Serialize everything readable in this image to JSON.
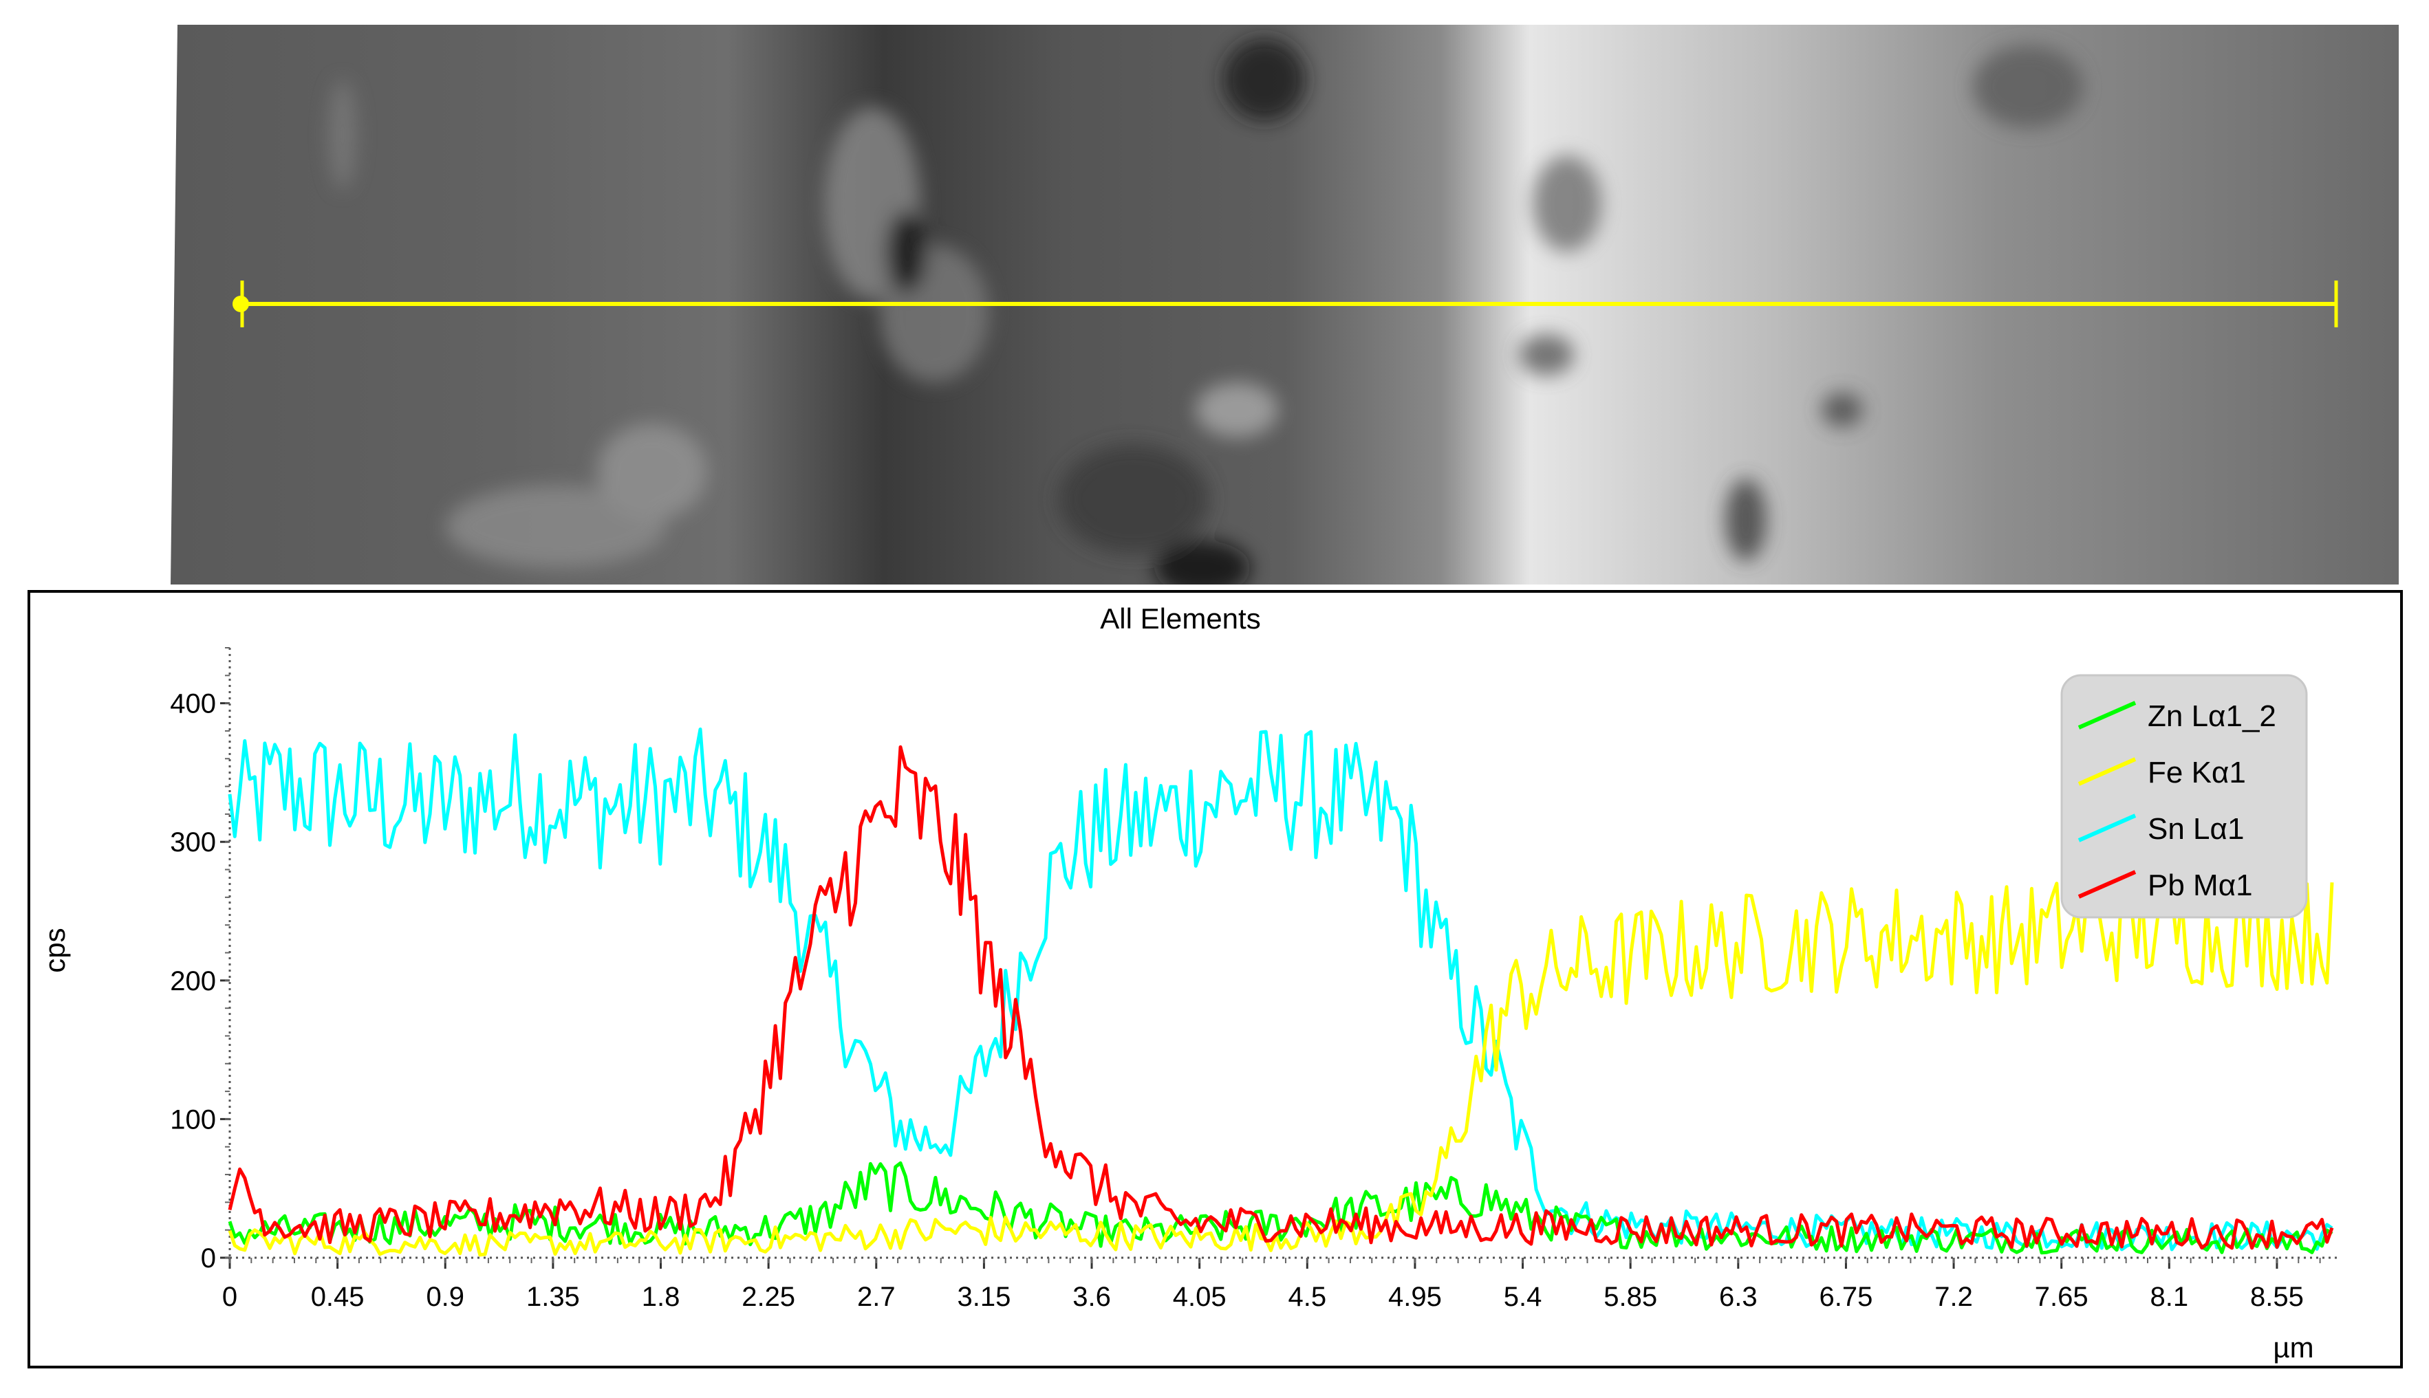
{
  "image_panel": {
    "scan_line": {
      "color": "#ffff00"
    }
  },
  "chart_data": {
    "type": "line",
    "title": "All Elements",
    "xlabel": "µm",
    "ylabel": "cps",
    "xlim": [
      0,
      8.78
    ],
    "ylim": [
      0,
      440
    ],
    "x_ticks": [
      "0",
      "0.45",
      "0.9",
      "1.35",
      "1.8",
      "2.25",
      "2.7",
      "3.15",
      "3.6",
      "4.05",
      "4.5",
      "4.95",
      "5.4",
      "5.85",
      "6.3",
      "6.75",
      "7.2",
      "7.65",
      "8.1",
      "8.55"
    ],
    "y_ticks": [
      "0",
      "100",
      "200",
      "300",
      "400"
    ],
    "legend_position": "top-right",
    "grid": false,
    "series": [
      {
        "name": "Zn Lα1_2",
        "color": "#00ff00",
        "x": [
          0,
          0.3,
          0.6,
          0.9,
          1.2,
          1.5,
          1.8,
          2.1,
          2.3,
          2.5,
          2.6,
          2.7,
          2.8,
          2.9,
          3.0,
          3.1,
          3.2,
          3.3,
          3.45,
          3.6,
          3.8,
          4.0,
          4.2,
          4.4,
          4.6,
          4.8,
          4.95,
          5.1,
          5.2,
          5.3,
          5.4,
          5.6,
          5.85,
          6.2,
          6.6,
          7.0,
          7.4,
          7.8,
          8.2,
          8.55,
          8.78
        ],
        "values": [
          18,
          20,
          22,
          24,
          26,
          24,
          20,
          20,
          22,
          32,
          45,
          55,
          50,
          46,
          42,
          38,
          34,
          30,
          25,
          20,
          18,
          20,
          22,
          24,
          30,
          36,
          40,
          42,
          45,
          40,
          30,
          22,
          18,
          16,
          14,
          14,
          13,
          13,
          12,
          12,
          12
        ]
      },
      {
        "name": "Fe Kα1",
        "color": "#ffff00",
        "x": [
          0,
          0.5,
          1.0,
          1.5,
          2.0,
          2.5,
          3.0,
          3.5,
          4.0,
          4.5,
          4.8,
          5.0,
          5.1,
          5.2,
          5.3,
          5.4,
          5.5,
          5.6,
          5.8,
          6.0,
          6.3,
          6.6,
          7.0,
          7.4,
          7.8,
          8.2,
          8.55,
          8.78
        ],
        "values": [
          12,
          11,
          10,
          10,
          12,
          14,
          20,
          18,
          14,
          16,
          22,
          40,
          80,
          130,
          170,
          195,
          200,
          210,
          215,
          220,
          225,
          230,
          232,
          230,
          238,
          235,
          232,
          236
        ]
      },
      {
        "name": "Sn Lα1",
        "color": "#00ffff",
        "x": [
          0,
          0.2,
          0.4,
          0.6,
          0.8,
          1.0,
          1.2,
          1.4,
          1.6,
          1.8,
          2.0,
          2.1,
          2.2,
          2.3,
          2.4,
          2.5,
          2.6,
          2.7,
          2.8,
          2.9,
          3.0,
          3.1,
          3.2,
          3.3,
          3.4,
          3.5,
          3.6,
          3.8,
          4.0,
          4.2,
          4.4,
          4.6,
          4.8,
          4.9,
          5.0,
          5.1,
          5.2,
          5.3,
          5.4,
          5.5,
          5.6,
          5.8,
          6.0,
          6.5,
          7.0,
          7.5,
          8.0,
          8.5,
          8.78
        ],
        "values": [
          320,
          340,
          335,
          330,
          325,
          330,
          335,
          330,
          325,
          330,
          335,
          320,
          300,
          280,
          240,
          200,
          160,
          120,
          95,
          85,
          90,
          120,
          160,
          210,
          260,
          290,
          305,
          315,
          325,
          335,
          340,
          330,
          320,
          310,
          250,
          200,
          170,
          130,
          80,
          45,
          30,
          25,
          22,
          20,
          18,
          17,
          16,
          16,
          16
        ]
      },
      {
        "name": "Pb Mα1",
        "color": "#ff0000",
        "x": [
          0,
          0.05,
          0.1,
          0.2,
          0.4,
          0.6,
          0.8,
          1.0,
          1.2,
          1.4,
          1.6,
          1.8,
          2.0,
          2.1,
          2.2,
          2.3,
          2.4,
          2.5,
          2.6,
          2.7,
          2.8,
          2.9,
          3.0,
          3.1,
          3.2,
          3.3,
          3.4,
          3.5,
          3.6,
          3.8,
          4.0,
          4.5,
          5.0,
          5.5,
          6.0,
          6.5,
          7.0,
          7.5,
          8.0,
          8.5,
          8.78
        ],
        "values": [
          25,
          70,
          35,
          25,
          22,
          24,
          26,
          28,
          32,
          38,
          35,
          30,
          40,
          60,
          110,
          160,
          210,
          250,
          285,
          310,
          330,
          320,
          300,
          250,
          190,
          150,
          100,
          70,
          55,
          35,
          25,
          25,
          22,
          22,
          20,
          20,
          20,
          18,
          18,
          18,
          18
        ]
      }
    ]
  }
}
